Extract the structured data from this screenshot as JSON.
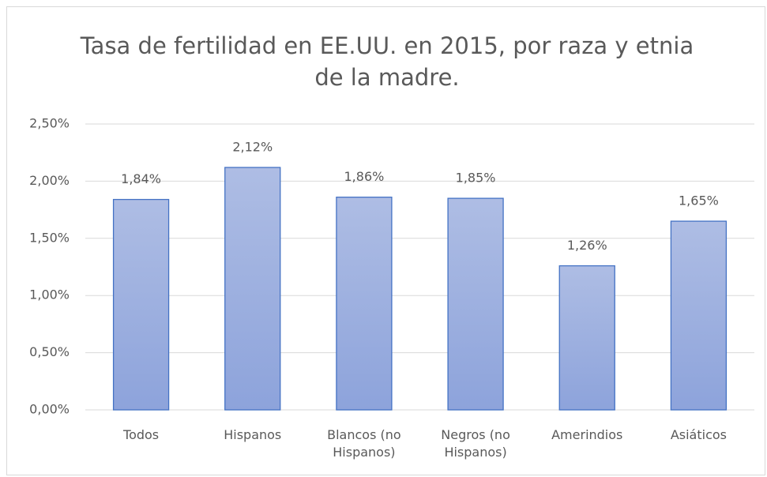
{
  "chart_data": {
    "type": "bar",
    "title": "Tasa de fertilidad en EE.UU. en 2015, por raza y etnia de la madre.",
    "categories": [
      "Todos",
      "Hispanos",
      "Blancos (no Hispanos)",
      "Negros (no Hispanos)",
      "Amerindios",
      "Asiáticos"
    ],
    "values": [
      1.84,
      2.12,
      1.86,
      1.85,
      1.26,
      1.65
    ],
    "value_labels": [
      "1,84%",
      "2,12%",
      "1,86%",
      "1,85%",
      "1,26%",
      "1,65%"
    ],
    "color": "#4472c4",
    "ylim": [
      0,
      2.5
    ],
    "yticks": [
      {
        "value": 0,
        "label": "0,00%"
      },
      {
        "value": 0.5,
        "label": "0,50%"
      },
      {
        "value": 1,
        "label": "1,00%"
      },
      {
        "value": 1.5,
        "label": "1,50%"
      },
      {
        "value": 2,
        "label": "2,00%"
      },
      {
        "value": 2.5,
        "label": "2,50%"
      }
    ],
    "grid": true
  }
}
